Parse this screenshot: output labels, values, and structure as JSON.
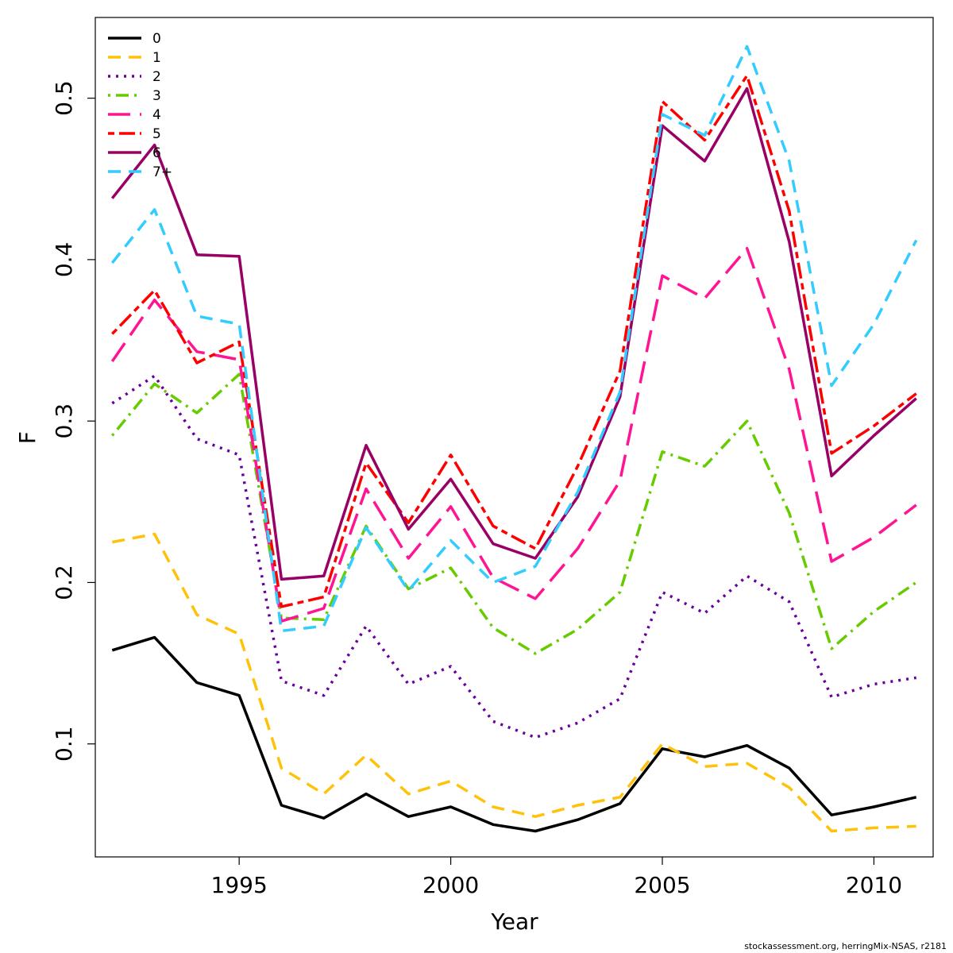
{
  "chart_data": {
    "type": "line",
    "xlabel": "Year",
    "ylabel": "F",
    "xlim": [
      1991.6,
      2011.4
    ],
    "ylim": [
      0.03,
      0.55
    ],
    "x_ticks": [
      1995,
      2000,
      2005,
      2010
    ],
    "y_ticks": [
      0.1,
      0.2,
      0.3,
      0.4,
      0.5
    ],
    "x_tick_labels": [
      "1995",
      "2000",
      "2005",
      "2010"
    ],
    "y_tick_labels": [
      "0.1",
      "0.2",
      "0.3",
      "0.4",
      "0.5"
    ],
    "legend_position": "top-left",
    "x": [
      1992,
      1993,
      1994,
      1995,
      1996,
      1997,
      1998,
      1999,
      2000,
      2001,
      2002,
      2003,
      2004,
      2005,
      2006,
      2007,
      2008,
      2009,
      2010,
      2011
    ],
    "series": [
      {
        "name": "0",
        "color": "#000000",
        "dash": "solid",
        "values": [
          0.158,
          0.166,
          0.138,
          0.13,
          0.062,
          0.054,
          0.069,
          0.055,
          0.061,
          0.05,
          0.046,
          0.053,
          0.063,
          0.097,
          0.092,
          0.099,
          0.085,
          0.056,
          0.061,
          0.067
        ]
      },
      {
        "name": "1",
        "color": "#FFC20A",
        "dash": "dashed",
        "values": [
          0.225,
          0.23,
          0.18,
          0.168,
          0.085,
          0.069,
          0.093,
          0.069,
          0.077,
          0.061,
          0.055,
          0.062,
          0.067,
          0.1,
          0.086,
          0.088,
          0.073,
          0.046,
          0.048,
          0.049
        ]
      },
      {
        "name": "2",
        "color": "#66009E",
        "dash": "dotted",
        "values": [
          0.311,
          0.328,
          0.289,
          0.279,
          0.139,
          0.13,
          0.173,
          0.137,
          0.148,
          0.114,
          0.104,
          0.113,
          0.128,
          0.194,
          0.181,
          0.204,
          0.188,
          0.129,
          0.137,
          0.141
        ]
      },
      {
        "name": "3",
        "color": "#66CC00",
        "dash": "dotdash",
        "values": [
          0.291,
          0.323,
          0.305,
          0.329,
          0.178,
          0.177,
          0.235,
          0.196,
          0.209,
          0.172,
          0.156,
          0.171,
          0.194,
          0.281,
          0.272,
          0.3,
          0.243,
          0.159,
          0.182,
          0.2
        ]
      },
      {
        "name": "4",
        "color": "#FF1493",
        "dash": "longdash",
        "values": [
          0.337,
          0.375,
          0.343,
          0.338,
          0.176,
          0.184,
          0.258,
          0.215,
          0.247,
          0.203,
          0.19,
          0.221,
          0.263,
          0.39,
          0.376,
          0.407,
          0.332,
          0.213,
          0.228,
          0.248
        ]
      },
      {
        "name": "5",
        "color": "#FF0000",
        "dash": "twodash",
        "values": [
          0.354,
          0.381,
          0.336,
          0.349,
          0.185,
          0.191,
          0.274,
          0.237,
          0.279,
          0.235,
          0.221,
          0.272,
          0.331,
          0.498,
          0.474,
          0.514,
          0.43,
          0.28,
          0.297,
          0.317
        ]
      },
      {
        "name": "6",
        "color": "#990066",
        "dash": "solid",
        "values": [
          0.438,
          0.471,
          0.403,
          0.402,
          0.202,
          0.204,
          0.285,
          0.233,
          0.264,
          0.224,
          0.215,
          0.253,
          0.315,
          0.483,
          0.461,
          0.506,
          0.411,
          0.266,
          0.291,
          0.314
        ]
      },
      {
        "name": "7+",
        "color": "#33CCFF",
        "dash": "dashed",
        "values": [
          0.398,
          0.431,
          0.365,
          0.36,
          0.17,
          0.173,
          0.234,
          0.195,
          0.226,
          0.2,
          0.21,
          0.256,
          0.318,
          0.49,
          0.477,
          0.532,
          0.461,
          0.322,
          0.36,
          0.412
        ]
      }
    ]
  },
  "footer": {
    "text": "stockassessment.org, herringMix-NSAS, r2181"
  }
}
